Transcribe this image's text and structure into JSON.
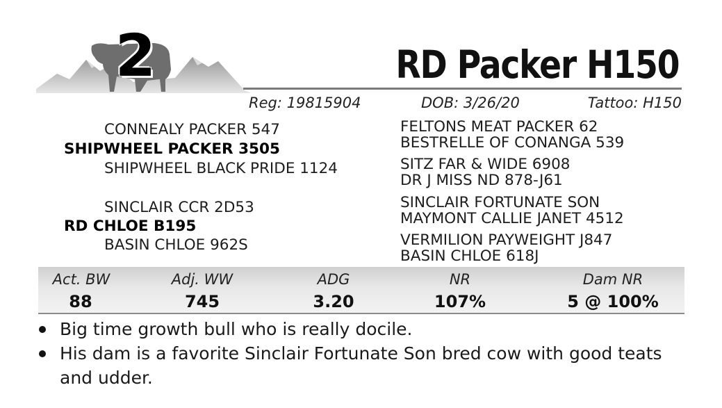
{
  "lot": {
    "number": "2",
    "logo_icon": "bull-mountain-logo-icon"
  },
  "bull": {
    "name": "RD Packer H150",
    "reg": "Reg: 19815904",
    "dob": "DOB:  3/26/20",
    "tattoo": "Tattoo:  H150"
  },
  "pedigree": {
    "sire": {
      "name": "SHIPWHEEL PACKER 3505",
      "sire": "CONNEALY PACKER 547",
      "dam": "SHIPWHEEL BLACK PRIDE 1124",
      "sire_sire": "FELTONS MEAT PACKER 62",
      "sire_dam": "BESTRELLE OF CONANGA 539",
      "dam_sire": "SITZ FAR & WIDE 6908",
      "dam_dam": "DR J MISS ND 878-J61"
    },
    "dam": {
      "name": "RD CHLOE B195",
      "sire": "SINCLAIR CCR 2D53",
      "dam": "BASIN CHLOE 962S",
      "sire_sire": "SINCLAIR FORTUNATE SON",
      "sire_dam": "MAYMONT CALLIE JANET 4512",
      "dam_sire": "VERMILION PAYWEIGHT J847",
      "dam_dam": "BASIN CHLOE 618J"
    }
  },
  "stats": [
    {
      "label": "Act. BW",
      "value": "88"
    },
    {
      "label": "Adj. WW",
      "value": "745"
    },
    {
      "label": "ADG",
      "value": "3.20"
    },
    {
      "label": "NR",
      "value": "107%"
    },
    {
      "label": "Dam NR",
      "value": "5 @ 100%"
    }
  ],
  "notes": [
    "Big time growth bull who is really docile.",
    "His dam is a favorite Sinclair Fortunate Son bred cow with good teats and udder."
  ]
}
